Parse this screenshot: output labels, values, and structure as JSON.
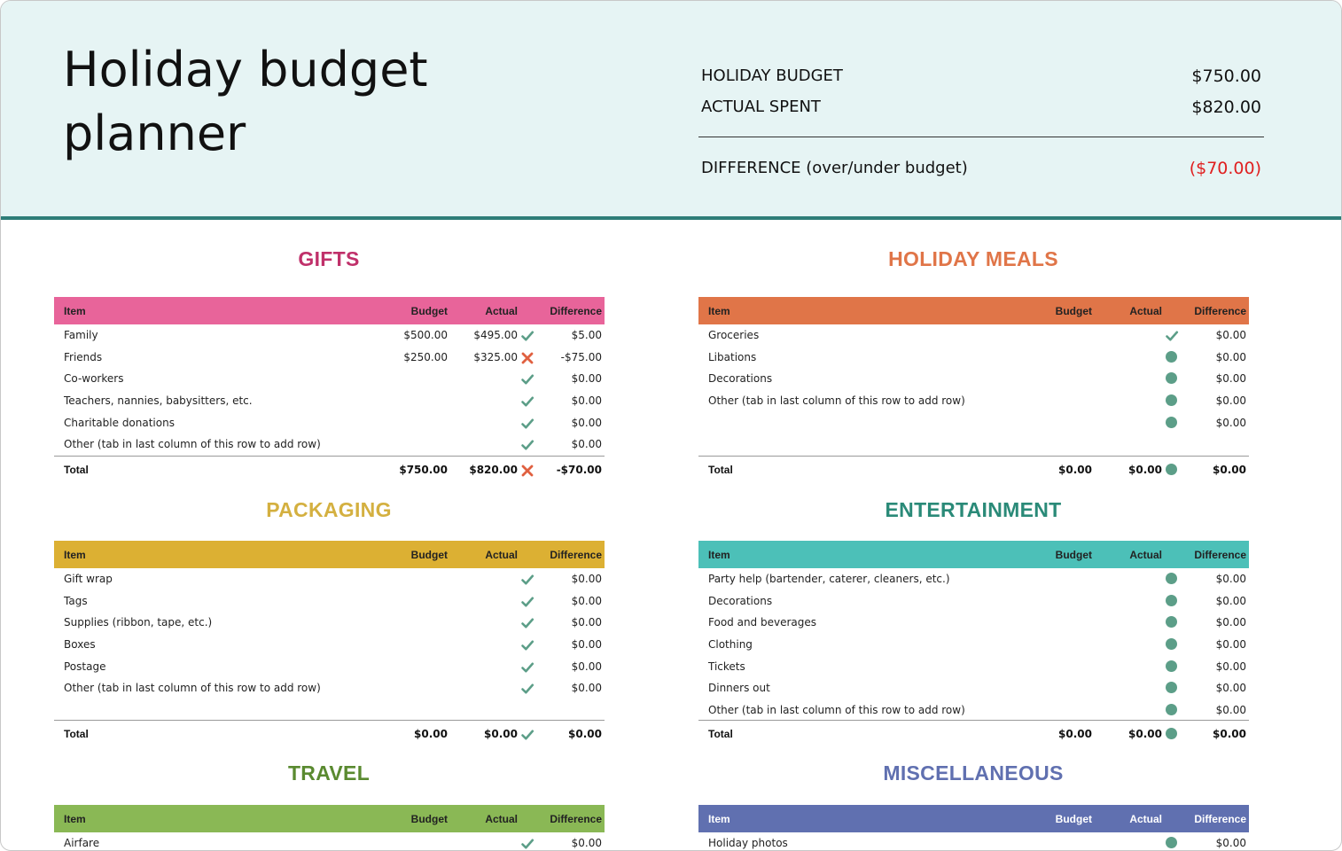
{
  "header": {
    "title_line1": "Holiday budget",
    "title_line2": "planner",
    "holiday_budget_label": "HOLIDAY BUDGET",
    "holiday_budget_value": "$750.00",
    "actual_spent_label": "ACTUAL SPENT",
    "actual_spent_value": "$820.00",
    "difference_label": "DIFFERENCE (over/under budget)",
    "difference_value": "($70.00)"
  },
  "columns": {
    "item": "Item",
    "budget": "Budget",
    "actual": "Actual",
    "difference": "Difference",
    "total": "Total"
  },
  "colors": {
    "gifts": "#e8649a",
    "gifts_title": "#c0306a",
    "meals": "#e07548",
    "meals_title": "#e07548",
    "packaging": "#dcb033",
    "packaging_title": "#d4b040",
    "entertainment": "#4cc0b8",
    "entertainment_title": "#2a8a78",
    "travel": "#8ab855",
    "travel_title": "#5a8a30",
    "misc": "#6070b0",
    "misc_title": "#6070b0",
    "check": "#5c9e88",
    "cross": "#e06040"
  },
  "gifts": {
    "title": "GIFTS",
    "rows": [
      {
        "item": "Family",
        "budget": "$500.00",
        "actual": "$495.00",
        "mark": "check",
        "diff": "$5.00"
      },
      {
        "item": "Friends",
        "budget": "$250.00",
        "actual": "$325.00",
        "mark": "cross",
        "diff": "-$75.00"
      },
      {
        "item": "Co-workers",
        "budget": "",
        "actual": "",
        "mark": "check",
        "diff": "$0.00"
      },
      {
        "item": "Teachers, nannies, babysitters, etc.",
        "budget": "",
        "actual": "",
        "mark": "check",
        "diff": "$0.00"
      },
      {
        "item": "Charitable donations",
        "budget": "",
        "actual": "",
        "mark": "check",
        "diff": "$0.00"
      },
      {
        "item": "Other (tab in last column of this row to add row)",
        "budget": "",
        "actual": "",
        "mark": "check",
        "diff": "$0.00"
      }
    ],
    "total": {
      "budget": "$750.00",
      "actual": "$820.00",
      "mark": "cross",
      "diff": "-$70.00"
    }
  },
  "meals": {
    "title": "HOLIDAY MEALS",
    "rows": [
      {
        "item": "Groceries",
        "budget": "",
        "actual": "",
        "mark": "check",
        "diff": "$0.00"
      },
      {
        "item": "Libations",
        "budget": "",
        "actual": "",
        "mark": "dot",
        "diff": "$0.00"
      },
      {
        "item": "Decorations",
        "budget": "",
        "actual": "",
        "mark": "dot",
        "diff": "$0.00"
      },
      {
        "item": "Other (tab in last column of this row to add row)",
        "budget": "",
        "actual": "",
        "mark": "dot",
        "diff": "$0.00"
      },
      {
        "item": "",
        "budget": "",
        "actual": "",
        "mark": "dot",
        "diff": "$0.00"
      }
    ],
    "total": {
      "budget": "$0.00",
      "actual": "$0.00",
      "mark": "dot",
      "diff": "$0.00"
    }
  },
  "packaging": {
    "title": "PACKAGING",
    "rows": [
      {
        "item": "Gift wrap",
        "budget": "",
        "actual": "",
        "mark": "check",
        "diff": "$0.00"
      },
      {
        "item": "Tags",
        "budget": "",
        "actual": "",
        "mark": "check",
        "diff": "$0.00"
      },
      {
        "item": "Supplies (ribbon, tape, etc.)",
        "budget": "",
        "actual": "",
        "mark": "check",
        "diff": "$0.00"
      },
      {
        "item": "Boxes",
        "budget": "",
        "actual": "",
        "mark": "check",
        "diff": "$0.00"
      },
      {
        "item": "Postage",
        "budget": "",
        "actual": "",
        "mark": "check",
        "diff": "$0.00"
      },
      {
        "item": "Other (tab in last column of this row to add row)",
        "budget": "",
        "actual": "",
        "mark": "check",
        "diff": "$0.00"
      }
    ],
    "total": {
      "budget": "$0.00",
      "actual": "$0.00",
      "mark": "check",
      "diff": "$0.00"
    }
  },
  "entertainment": {
    "title": "ENTERTAINMENT",
    "rows": [
      {
        "item": "Party help (bartender, caterer, cleaners, etc.)",
        "budget": "",
        "actual": "",
        "mark": "dot",
        "diff": "$0.00"
      },
      {
        "item": "Decorations",
        "budget": "",
        "actual": "",
        "mark": "dot",
        "diff": "$0.00"
      },
      {
        "item": "Food and beverages",
        "budget": "",
        "actual": "",
        "mark": "dot",
        "diff": "$0.00"
      },
      {
        "item": "Clothing",
        "budget": "",
        "actual": "",
        "mark": "dot",
        "diff": "$0.00"
      },
      {
        "item": "Tickets",
        "budget": "",
        "actual": "",
        "mark": "dot",
        "diff": "$0.00"
      },
      {
        "item": "Dinners out",
        "budget": "",
        "actual": "",
        "mark": "dot",
        "diff": "$0.00"
      },
      {
        "item": "Other (tab in last column of this row to add row)",
        "budget": "",
        "actual": "",
        "mark": "dot",
        "diff": "$0.00"
      }
    ],
    "total": {
      "budget": "$0.00",
      "actual": "$0.00",
      "mark": "dot",
      "diff": "$0.00"
    }
  },
  "travel": {
    "title": "TRAVEL",
    "rows": [
      {
        "item": "Airfare",
        "budget": "",
        "actual": "",
        "mark": "check",
        "diff": "$0.00"
      }
    ]
  },
  "misc": {
    "title": "MISCELLANEOUS",
    "rows": [
      {
        "item": "Holiday photos",
        "budget": "",
        "actual": "",
        "mark": "dot",
        "diff": "$0.00"
      }
    ]
  }
}
